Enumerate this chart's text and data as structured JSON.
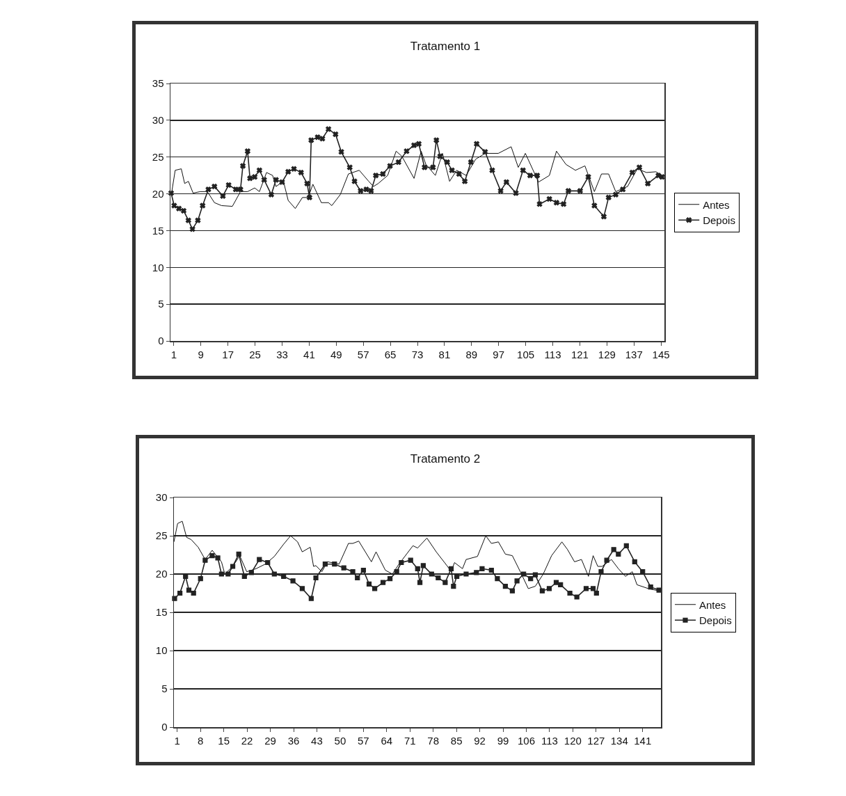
{
  "chart_data": [
    {
      "type": "line",
      "title": "Tratamento 1",
      "xlim": [
        0,
        146
      ],
      "xticks": [
        1,
        9,
        17,
        25,
        33,
        41,
        49,
        57,
        65,
        73,
        81,
        89,
        97,
        105,
        113,
        121,
        129,
        137,
        145
      ],
      "ylim": [
        0,
        35
      ],
      "yticks": [
        0,
        5,
        10,
        15,
        20,
        25,
        30,
        35
      ],
      "grid": "y",
      "legend": "right",
      "series": [
        {
          "name": "Antes",
          "color": "#111111",
          "marker": "none",
          "x": [
            0.4,
            1.4,
            3.2,
            4.2,
            5.3,
            6.7,
            8.8,
            10.9,
            13,
            15.1,
            18.3,
            20.7,
            22.8,
            24.9,
            26.3,
            28.4,
            30.2,
            31.2,
            33.4,
            34.8,
            36.9,
            39,
            40.7,
            42.1,
            44.6,
            46.7,
            47.7,
            50.2,
            52.6,
            55.8,
            58.6,
            60,
            61.4,
            64.2,
            66.7,
            68.4,
            72,
            74.1,
            75.5,
            78.3,
            80.4,
            82.5,
            84.6,
            87.4,
            90.2,
            93,
            96.9,
            100.7,
            102.8,
            104.9,
            108.8,
            112,
            114.1,
            116.9,
            119.7,
            122.5,
            125.3,
            127.4,
            129.5,
            131.6,
            135.1,
            138,
            140.7,
            143.5,
            145.3
          ],
          "values": [
            20.3,
            23.2,
            23.4,
            21.4,
            21.7,
            20.1,
            20.3,
            20.3,
            18.8,
            18.4,
            18.3,
            20.3,
            20.3,
            20.8,
            20.3,
            22.9,
            22.5,
            21,
            21.7,
            19.1,
            18,
            19.5,
            19.5,
            21.3,
            18.8,
            18.8,
            18.4,
            19.9,
            22.7,
            23.2,
            21.7,
            21,
            21.4,
            22.5,
            25.8,
            25.1,
            22.1,
            25.8,
            24,
            22.5,
            25.5,
            21.7,
            23.2,
            22.5,
            24.7,
            25.5,
            25.5,
            26.4,
            23.6,
            25.5,
            21.6,
            22.5,
            25.8,
            24,
            23.2,
            23.8,
            20.3,
            22.7,
            22.7,
            20.3,
            21,
            23.4,
            22.9,
            23,
            22.5
          ]
        },
        {
          "name": "Depois",
          "color": "#222222",
          "marker": "cross",
          "x": [
            0.2,
            1.1,
            2.5,
            3.9,
            5.3,
            6.5,
            8.1,
            9.5,
            11.2,
            13,
            15.5,
            17.2,
            19.3,
            20.7,
            21.4,
            22.8,
            23.5,
            24.9,
            26.3,
            27.7,
            29.8,
            31.2,
            33,
            34.8,
            36.5,
            38.6,
            40.4,
            41.1,
            41.6,
            43.5,
            44.9,
            46.7,
            48.8,
            50.5,
            53,
            54.4,
            56.2,
            57.9,
            59.3,
            60.7,
            62.8,
            64.9,
            67.4,
            69.8,
            72,
            73.4,
            75.1,
            77.6,
            78.6,
            79.7,
            81.8,
            83.2,
            85.3,
            87,
            88.8,
            90.5,
            93,
            95.1,
            97.6,
            99.3,
            102.1,
            104.2,
            106.3,
            108.4,
            109.1,
            112,
            114.1,
            116.2,
            117.6,
            121.1,
            123.5,
            125.3,
            128.1,
            129.5,
            131.6,
            133.7,
            136.5,
            138.6,
            141.1,
            144.2,
            145.3
          ],
          "values": [
            20.1,
            18.4,
            18,
            17.7,
            16.4,
            15.2,
            16.4,
            18.4,
            20.6,
            21,
            19.7,
            21.2,
            20.6,
            20.6,
            23.8,
            25.8,
            22.1,
            22.3,
            23.2,
            21.9,
            19.9,
            21.9,
            21.6,
            23,
            23.4,
            22.9,
            21.4,
            19.5,
            27.3,
            27.7,
            27.5,
            28.8,
            28.1,
            25.7,
            23.6,
            21.7,
            20.4,
            20.6,
            20.4,
            22.5,
            22.7,
            23.8,
            24.3,
            25.8,
            26.6,
            26.8,
            23.6,
            23.6,
            27.3,
            25.1,
            24.3,
            23.2,
            22.7,
            21.7,
            24.3,
            26.8,
            25.7,
            23.2,
            20.4,
            21.6,
            20.1,
            23.2,
            22.5,
            22.5,
            18.6,
            19.3,
            18.8,
            18.6,
            20.4,
            20.4,
            22.3,
            18.4,
            16.9,
            19.5,
            19.9,
            20.6,
            22.9,
            23.6,
            21.4,
            22.5,
            22.3
          ]
        }
      ]
    },
    {
      "type": "line",
      "title": "Tratamento 2",
      "xlim": [
        0,
        146.5
      ],
      "xticks": [
        1,
        8,
        15,
        22,
        29,
        36,
        43,
        50,
        57,
        64,
        71,
        78,
        85,
        92,
        99,
        106,
        113,
        120,
        127,
        134,
        141
      ],
      "ylim": [
        0,
        30
      ],
      "yticks": [
        0,
        5,
        10,
        15,
        20,
        25,
        30
      ],
      "grid": "y",
      "legend": "right",
      "series": [
        {
          "name": "Antes",
          "color": "#111111",
          "marker": "none",
          "x": [
            0,
            1.1,
            2.5,
            3.8,
            5.2,
            7.3,
            9.4,
            11.5,
            14.3,
            15.3,
            17.7,
            19.8,
            21.9,
            24.7,
            27.5,
            30.2,
            33,
            35.1,
            37.2,
            38.6,
            41,
            42,
            42.7,
            44.5,
            46.2,
            49.7,
            52.5,
            53.8,
            55.6,
            59.4,
            60.8,
            63.6,
            65.7,
            67.7,
            71.9,
            73.3,
            76.1,
            78.9,
            82.3,
            83.4,
            84.4,
            86.8,
            87.9,
            91.3,
            93.8,
            95.5,
            97.6,
            99.7,
            101.8,
            104.2,
            106.6,
            108.7,
            111.1,
            113.6,
            116.7,
            118.4,
            120.5,
            122.6,
            124.7,
            126.1,
            127.5,
            128.8,
            131.6,
            133.7,
            135.8,
            137.9,
            139.3,
            142.7,
            145.9
          ],
          "values": [
            24.2,
            26.6,
            26.9,
            24.8,
            24.5,
            23.5,
            21.9,
            23.1,
            21.6,
            20,
            21,
            22.4,
            20.3,
            20.7,
            21.3,
            22.3,
            23.9,
            25,
            24.2,
            22.9,
            23.5,
            21,
            21.1,
            20.3,
            21.6,
            21.3,
            24,
            24,
            24.3,
            21.6,
            22.9,
            20.5,
            20,
            21.3,
            23.7,
            23.4,
            24.7,
            22.9,
            21,
            20.3,
            21.5,
            20.7,
            21.9,
            22.3,
            25,
            24,
            24.2,
            22.6,
            22.4,
            20.3,
            18.1,
            18.4,
            20,
            22.4,
            24.2,
            23.2,
            21.6,
            21.9,
            19.7,
            22.4,
            21,
            21,
            21.9,
            20.7,
            19.7,
            20.3,
            18.6,
            18.1,
            17.8
          ]
        },
        {
          "name": "Depois",
          "color": "#222222",
          "marker": "square",
          "x": [
            0.2,
            1.8,
            3.5,
            4.5,
            5.9,
            8,
            9.4,
            11.5,
            13.2,
            14.3,
            16.3,
            17.7,
            19.5,
            21.2,
            23.3,
            25.7,
            28.2,
            30.2,
            33,
            35.8,
            38.6,
            41.3,
            42.7,
            45.5,
            48.3,
            51.1,
            53.8,
            55.2,
            57,
            58.7,
            60.4,
            62.9,
            65,
            67,
            68.4,
            71.2,
            73.3,
            74,
            75,
            77.5,
            79.5,
            81.6,
            83.4,
            84.1,
            85.1,
            87.9,
            91,
            92.7,
            95.5,
            97.3,
            99.7,
            101.8,
            103.2,
            105.2,
            107.3,
            108.7,
            110.8,
            112.9,
            115,
            116.3,
            119.1,
            121.2,
            124,
            126.1,
            127.1,
            128.5,
            130.2,
            132.3,
            133.7,
            136.1,
            138.6,
            141,
            143.4,
            145.9
          ],
          "values": [
            16.8,
            17.5,
            19.7,
            17.9,
            17.5,
            19.4,
            21.8,
            22.4,
            22.1,
            20,
            20,
            21,
            22.6,
            19.7,
            20.2,
            21.9,
            21.5,
            20,
            19.7,
            19.1,
            18.1,
            16.8,
            19.5,
            21.3,
            21.3,
            20.8,
            20.3,
            19.5,
            20.5,
            18.7,
            18.1,
            18.9,
            19.4,
            20.3,
            21.5,
            21.8,
            20.7,
            18.9,
            21.1,
            20,
            19.5,
            18.9,
            20.7,
            18.4,
            19.7,
            20,
            20.2,
            20.7,
            20.5,
            19.4,
            18.4,
            17.8,
            19.1,
            20,
            19.4,
            19.9,
            17.8,
            18.1,
            18.9,
            18.6,
            17.5,
            17,
            18.1,
            18.1,
            17.5,
            20.3,
            21.8,
            23.2,
            22.6,
            23.7,
            21.6,
            20.3,
            18.3,
            17.9
          ]
        }
      ]
    }
  ]
}
